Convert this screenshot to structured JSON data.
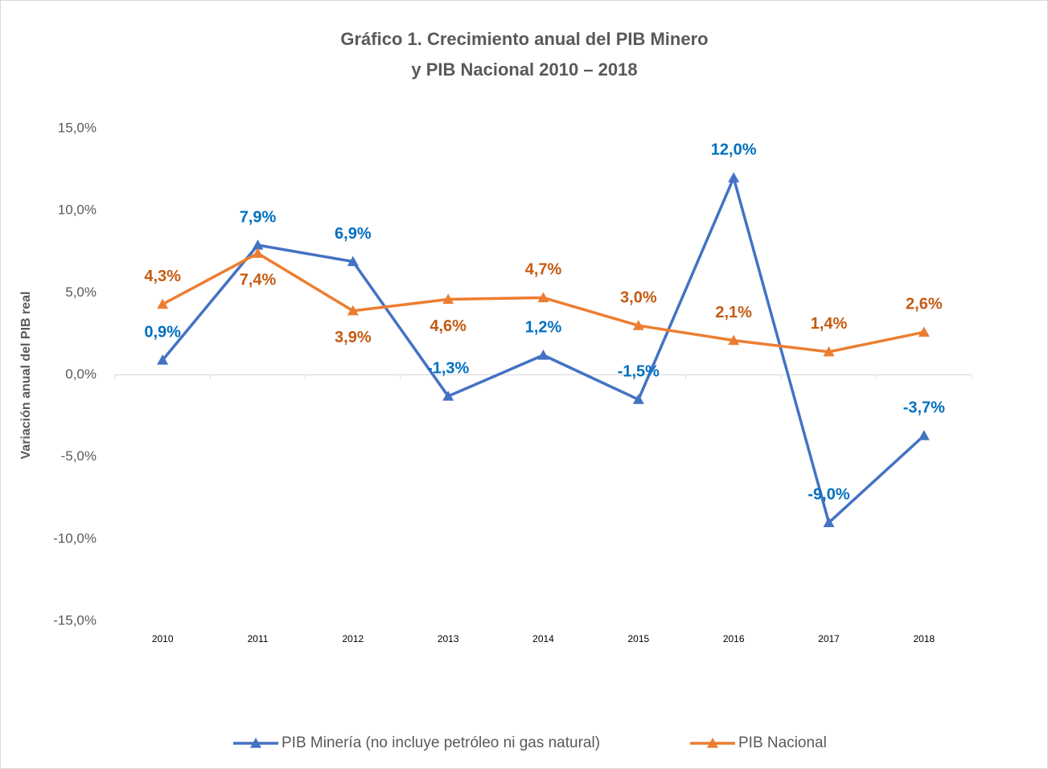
{
  "chart_data": {
    "type": "line",
    "title": [
      "Gráfico 1. Crecimiento anual del PIB Minero",
      "y PIB Nacional 2010 – 2018"
    ],
    "y_label": "Variación anual del PIB real",
    "categories": [
      "2010",
      "2011",
      "2012",
      "2013",
      "2014",
      "2015",
      "2016",
      "2017",
      "2018"
    ],
    "series": [
      {
        "name": "PIB Minería (no incluye petróleo ni gas natural)",
        "color": "#4472c4",
        "label_color": "#0070c0",
        "values": [
          0.9,
          7.9,
          6.9,
          -1.3,
          1.2,
          -1.5,
          12.0,
          -9.0,
          -3.7
        ],
        "value_labels": [
          "0,9%",
          "7,9%",
          "6,9%",
          "-1,3%",
          "1,2%",
          "-1,5%",
          "12,0%",
          "-9,0%",
          "-3,7%"
        ]
      },
      {
        "name": "PIB Nacional",
        "color": "#ed7d31",
        "label_color": "#c55a11",
        "values": [
          4.3,
          7.4,
          3.9,
          4.6,
          4.7,
          3.0,
          2.1,
          1.4,
          2.6
        ],
        "value_labels": [
          "4,3%",
          "7,4%",
          "3,9%",
          "4,6%",
          "4,7%",
          "3,0%",
          "2,1%",
          "1,4%",
          "2,6%"
        ]
      }
    ],
    "ylim": [
      -15,
      15
    ],
    "yticks": [
      {
        "value": -15,
        "label": "-15,0%"
      },
      {
        "value": -10,
        "label": "-10,0%"
      },
      {
        "value": -5,
        "label": "-5,0%"
      },
      {
        "value": 0,
        "label": "0,0%"
      },
      {
        "value": 5,
        "label": "5,0%"
      },
      {
        "value": 10,
        "label": "10,0%"
      },
      {
        "value": 15,
        "label": "15,0%"
      }
    ],
    "grid": false,
    "legend": "bottom"
  }
}
